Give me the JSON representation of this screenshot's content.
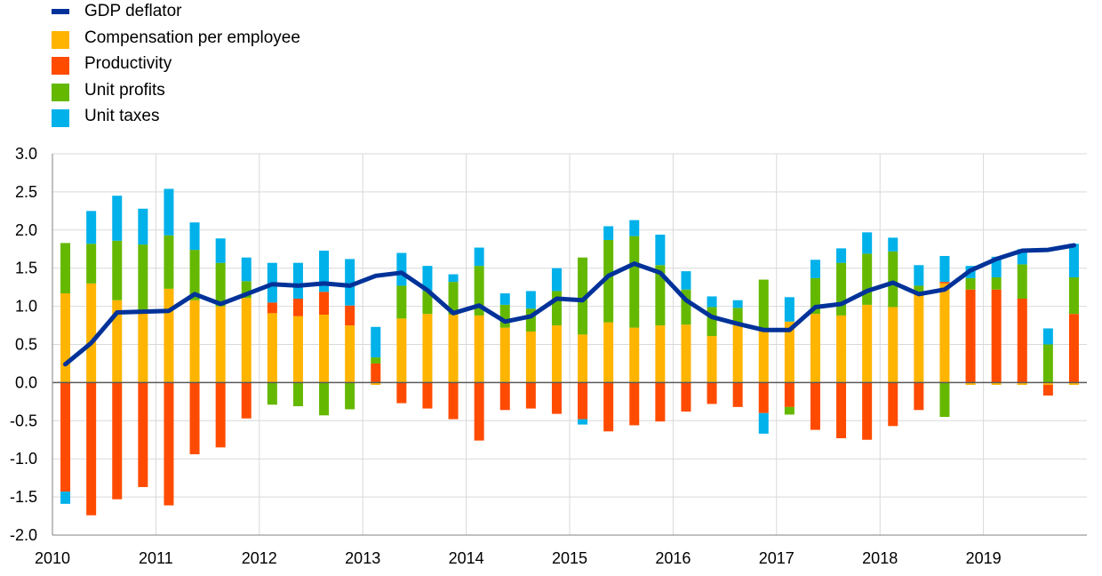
{
  "chart_data": {
    "type": "bar",
    "title": "",
    "xlabel": "",
    "ylabel": "",
    "ylim": [
      -2.0,
      3.0
    ],
    "yticks": [
      "3.0",
      "2.5",
      "2.0",
      "1.5",
      "1.0",
      "0.5",
      "0.0",
      "-0.5",
      "-1.0",
      "-1.5",
      "-2.0"
    ],
    "ytick_values": [
      3.0,
      2.5,
      2.0,
      1.5,
      1.0,
      0.5,
      0.0,
      -0.5,
      -1.0,
      -1.5,
      -2.0
    ],
    "year_labels": [
      "2010",
      "2011",
      "2012",
      "2013",
      "2014",
      "2015",
      "2016",
      "2017",
      "2018",
      "2019"
    ],
    "grid": true,
    "legend_position": "top-left",
    "x": [
      "2010 Q1",
      "2010 Q2",
      "2010 Q3",
      "2010 Q4",
      "2011 Q1",
      "2011 Q2",
      "2011 Q3",
      "2011 Q4",
      "2012 Q1",
      "2012 Q2",
      "2012 Q3",
      "2012 Q4",
      "2013 Q1",
      "2013 Q2",
      "2013 Q3",
      "2013 Q4",
      "2014 Q1",
      "2014 Q2",
      "2014 Q3",
      "2014 Q4",
      "2015 Q1",
      "2015 Q2",
      "2015 Q3",
      "2015 Q4",
      "2016 Q1",
      "2016 Q2",
      "2016 Q3",
      "2016 Q4",
      "2017 Q1",
      "2017 Q2",
      "2017 Q3",
      "2017 Q4",
      "2018 Q1",
      "2018 Q2",
      "2018 Q3",
      "2018 Q4",
      "2019 Q1",
      "2019 Q2",
      "2019 Q3",
      "2019 Q4"
    ],
    "series": [
      {
        "name": "Compensation per employee",
        "kind": "bar",
        "color": "#FFB400",
        "values": [
          1.17,
          1.3,
          1.08,
          0.93,
          1.23,
          1.08,
          1.0,
          1.11,
          0.91,
          0.87,
          0.89,
          0.75,
          -0.03,
          0.84,
          0.9,
          0.89,
          0.88,
          0.72,
          0.67,
          0.75,
          0.63,
          0.79,
          0.72,
          0.75,
          0.76,
          0.61,
          0.78,
          0.7,
          0.8,
          0.9,
          0.88,
          1.02,
          0.99,
          1.16,
          1.3,
          -0.03,
          -0.03,
          -0.03,
          -0.03,
          -0.03
        ]
      },
      {
        "name": "Productivity",
        "kind": "bar",
        "color": "#FF4B00",
        "values": [
          -1.43,
          -1.74,
          -1.53,
          -1.37,
          -1.61,
          -0.94,
          -0.85,
          -0.47,
          0.14,
          0.23,
          0.3,
          0.26,
          0.25,
          -0.27,
          -0.34,
          -0.48,
          -0.76,
          -0.36,
          -0.34,
          -0.41,
          -0.48,
          -0.64,
          -0.56,
          -0.51,
          -0.38,
          -0.28,
          -0.32,
          -0.4,
          -0.32,
          -0.62,
          -0.73,
          -0.75,
          -0.57,
          -0.36,
          0.02,
          1.22,
          1.22,
          1.1,
          -0.14,
          0.9
        ]
      },
      {
        "name": "Unit profits",
        "kind": "bar",
        "color": "#65B800",
        "values": [
          0.66,
          0.52,
          0.78,
          0.88,
          0.7,
          0.66,
          0.57,
          0.22,
          -0.29,
          -0.31,
          -0.43,
          -0.35,
          0.08,
          0.43,
          0.3,
          0.43,
          0.65,
          0.3,
          0.3,
          0.45,
          1.01,
          1.08,
          1.2,
          0.79,
          0.46,
          0.38,
          0.2,
          0.65,
          -0.1,
          0.47,
          0.69,
          0.67,
          0.73,
          0.11,
          -0.45,
          0.15,
          0.16,
          0.45,
          0.5,
          0.48
        ]
      },
      {
        "name": "Unit taxes",
        "kind": "bar",
        "color": "#00B1EA",
        "values": [
          -0.16,
          0.43,
          0.59,
          0.47,
          0.61,
          0.36,
          0.32,
          0.31,
          0.52,
          0.47,
          0.54,
          0.61,
          0.4,
          0.43,
          0.33,
          0.1,
          0.24,
          0.15,
          0.23,
          0.3,
          -0.07,
          0.18,
          0.21,
          0.4,
          0.24,
          0.14,
          0.1,
          -0.27,
          0.32,
          0.24,
          0.19,
          0.28,
          0.18,
          0.27,
          0.34,
          0.16,
          0.27,
          0.2,
          0.21,
          0.44
        ]
      },
      {
        "name": "GDP deflator",
        "kind": "line",
        "color": "#003299",
        "values": [
          0.24,
          0.52,
          0.92,
          0.93,
          0.94,
          1.16,
          1.03,
          1.16,
          1.29,
          1.27,
          1.3,
          1.27,
          1.4,
          1.44,
          1.21,
          0.91,
          1.01,
          0.8,
          0.87,
          1.1,
          1.08,
          1.4,
          1.56,
          1.44,
          1.08,
          0.86,
          0.77,
          0.69,
          0.69,
          0.99,
          1.03,
          1.2,
          1.31,
          1.16,
          1.22,
          1.47,
          1.62,
          1.73,
          1.74,
          1.8
        ]
      }
    ]
  }
}
